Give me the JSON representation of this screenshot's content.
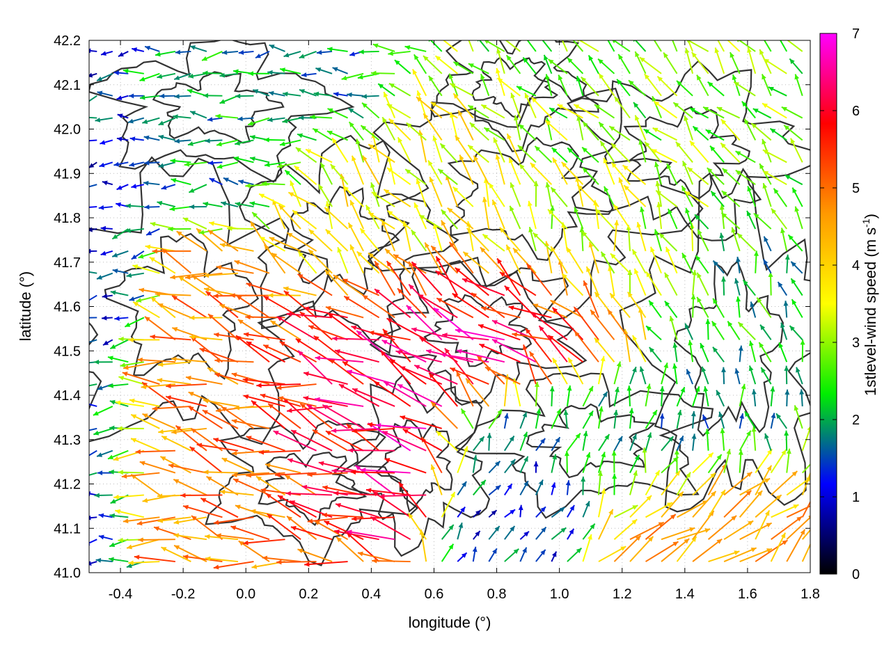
{
  "chart_data": {
    "type": "vector-field",
    "xlabel": "longitude (°)",
    "ylabel": "latitude (°)",
    "xlim": [
      -0.5,
      1.8
    ],
    "ylim": [
      41.0,
      42.2
    ],
    "xticks": [
      "-0.4",
      "-0.2",
      "0.0",
      "0.2",
      "0.4",
      "0.6",
      "0.8",
      "1.0",
      "1.2",
      "1.4",
      "1.6",
      "1.8"
    ],
    "xtick_values": [
      -0.4,
      -0.2,
      0.0,
      0.2,
      0.4,
      0.6,
      0.8,
      1.0,
      1.2,
      1.4,
      1.6,
      1.8
    ],
    "yticks": [
      "41.0",
      "41.1",
      "41.2",
      "41.3",
      "41.4",
      "41.5",
      "41.6",
      "41.7",
      "41.8",
      "41.9",
      "42.0",
      "42.1",
      "42.2"
    ],
    "ytick_values": [
      41.0,
      41.1,
      41.2,
      41.3,
      41.4,
      41.5,
      41.6,
      41.7,
      41.8,
      41.9,
      42.0,
      42.1,
      42.2
    ],
    "grid": true,
    "colorbar": {
      "label_main": "1stlevel-wind speed (m s",
      "label_sup": "-1",
      "label_end": ")",
      "range": [
        0,
        7
      ],
      "ticks": [
        "0",
        "1",
        "2",
        "3",
        "4",
        "5",
        "6",
        "7"
      ],
      "tick_values": [
        0,
        1,
        2,
        3,
        4,
        5,
        6,
        7
      ],
      "colors": [
        "#000000",
        "#0000ff",
        "#00ee00",
        "#ffff00",
        "#ff9900",
        "#ff0000",
        "#ff00ff"
      ]
    },
    "grid_spacing_deg": 0.05,
    "wind_regions": [
      {
        "lon": [
          -0.5,
          -0.35
        ],
        "lat": [
          41.0,
          42.2
        ],
        "speed": 1.3,
        "dir_deg": 190
      },
      {
        "lon": [
          -0.35,
          0.3
        ],
        "lat": [
          41.1,
          41.6
        ],
        "speed": 4.8,
        "dir_deg": 165
      },
      {
        "lon": [
          0.1,
          0.55
        ],
        "lat": [
          41.2,
          41.5
        ],
        "speed": 6.3,
        "dir_deg": 160
      },
      {
        "lon": [
          0.4,
          1.15
        ],
        "lat": [
          41.45,
          41.65
        ],
        "speed": 6.2,
        "dir_deg": 150
      },
      {
        "lon": [
          0.2,
          0.8
        ],
        "lat": [
          41.65,
          41.95
        ],
        "speed": 3.6,
        "dir_deg": 125
      },
      {
        "lon": [
          0.8,
          1.4
        ],
        "lat": [
          41.6,
          41.9
        ],
        "speed": 3.3,
        "dir_deg": 110
      },
      {
        "lon": [
          1.0,
          1.8
        ],
        "lat": [
          41.85,
          42.2
        ],
        "speed": 2.8,
        "dir_deg": 130
      },
      {
        "lon": [
          1.35,
          1.8
        ],
        "lat": [
          41.3,
          41.7
        ],
        "speed": 2.2,
        "dir_deg": 110
      },
      {
        "lon": [
          0.9,
          1.6
        ],
        "lat": [
          41.2,
          41.4
        ],
        "speed": 2.0,
        "dir_deg": 75
      },
      {
        "lon": [
          1.2,
          1.8
        ],
        "lat": [
          41.0,
          41.2
        ],
        "speed": 4.5,
        "dir_deg": 40
      },
      {
        "lon": [
          0.75,
          1.0
        ],
        "lat": [
          41.0,
          41.25
        ],
        "speed": 1.4,
        "dir_deg": 60
      },
      {
        "lon": [
          -0.3,
          0.3
        ],
        "lat": [
          41.9,
          42.2
        ],
        "speed": 1.9,
        "dir_deg": 180
      }
    ]
  }
}
